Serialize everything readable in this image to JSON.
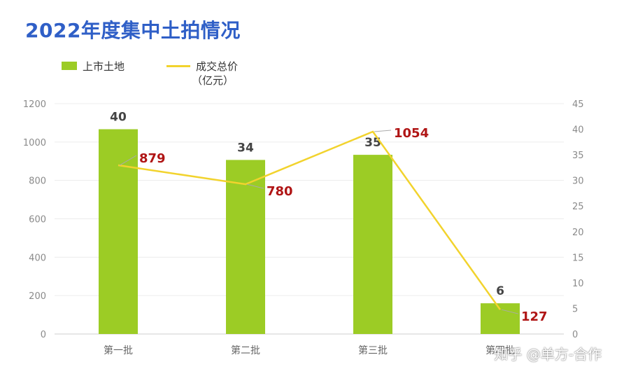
{
  "title": "2022年度集中土拍情况",
  "legend": {
    "bar_label": "上市土地",
    "line_label_1": "成交总价",
    "line_label_2": "（亿元）"
  },
  "watermark": "知乎 @单方-合作",
  "colors": {
    "bar": "#9ccc25",
    "line": "#f2d32d",
    "line_label": "#b01515",
    "title": "#2f5fc7"
  },
  "chart_data": {
    "type": "bar",
    "categories": [
      "第一批",
      "第二批",
      "第三批",
      "第四批"
    ],
    "series": [
      {
        "name": "上市土地",
        "type": "bar",
        "axis": "right",
        "values": [
          40,
          34,
          35,
          6
        ]
      },
      {
        "name": "成交总价（亿元）",
        "type": "line",
        "axis": "left",
        "values": [
          879,
          780,
          1054,
          127
        ]
      }
    ],
    "left_axis": {
      "ylim": [
        0,
        1200
      ],
      "ticks": [
        0,
        200,
        400,
        600,
        800,
        1000,
        1200
      ]
    },
    "right_axis": {
      "ylim": [
        0,
        45
      ],
      "ticks": [
        0,
        5,
        10,
        15,
        20,
        25,
        30,
        35,
        40,
        45
      ]
    },
    "grid": true,
    "legend_position": "top-left"
  }
}
